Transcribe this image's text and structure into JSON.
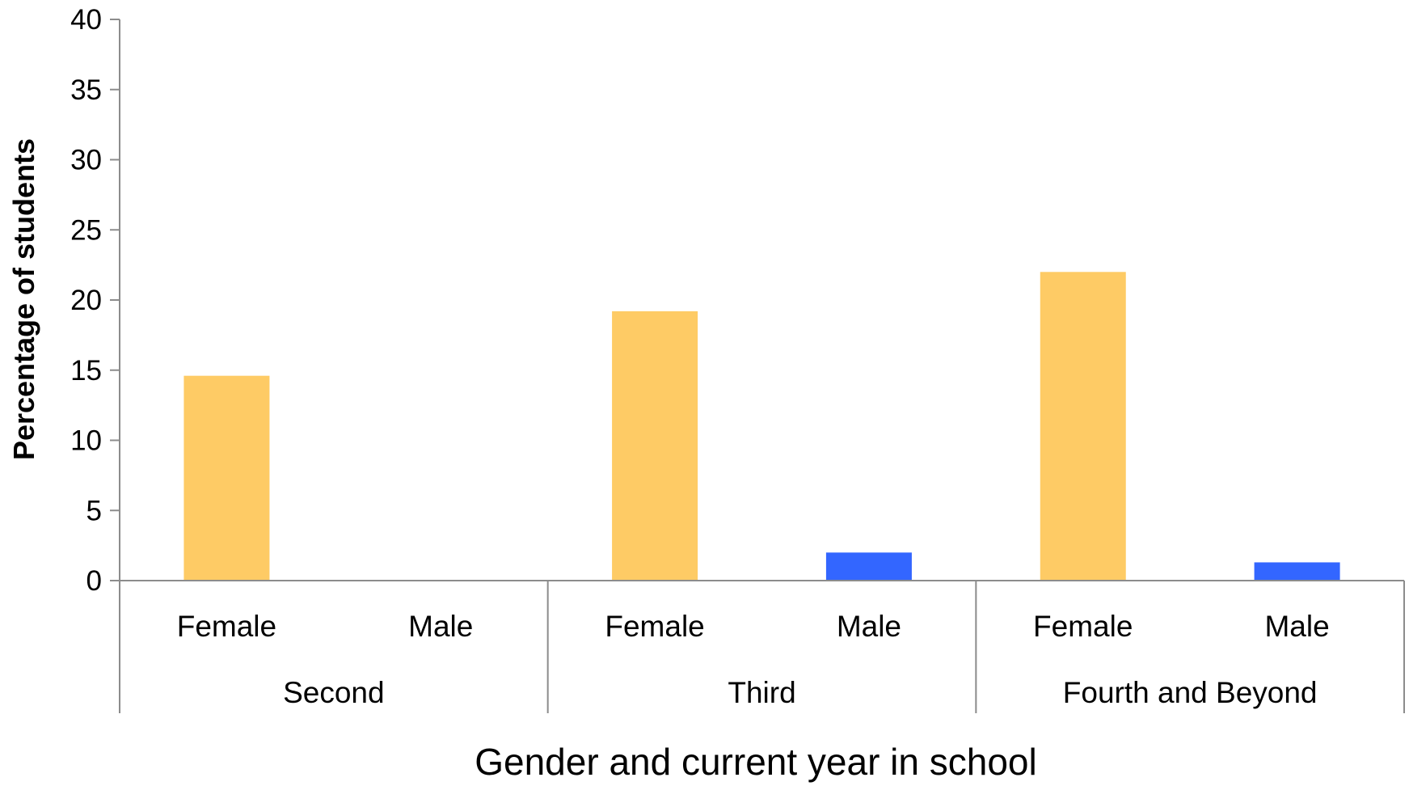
{
  "chart_data": {
    "type": "bar",
    "xlabel": "Gender and current year in school",
    "ylabel": "Percentage of students",
    "ylim": [
      0,
      40
    ],
    "yticks": [
      0,
      5,
      10,
      15,
      20,
      25,
      30,
      35,
      40
    ],
    "grid": false,
    "groups": [
      {
        "label": "Second",
        "categories": [
          "Female",
          "Male"
        ],
        "values": [
          14.6,
          0
        ]
      },
      {
        "label": "Third",
        "categories": [
          "Female",
          "Male"
        ],
        "values": [
          19.2,
          2.0
        ]
      },
      {
        "label": "Fourth and Beyond",
        "categories": [
          "Female",
          "Male"
        ],
        "values": [
          22.0,
          1.3
        ]
      }
    ],
    "colors": {
      "Female": "#FECB65",
      "Male": "#3366FF"
    }
  }
}
